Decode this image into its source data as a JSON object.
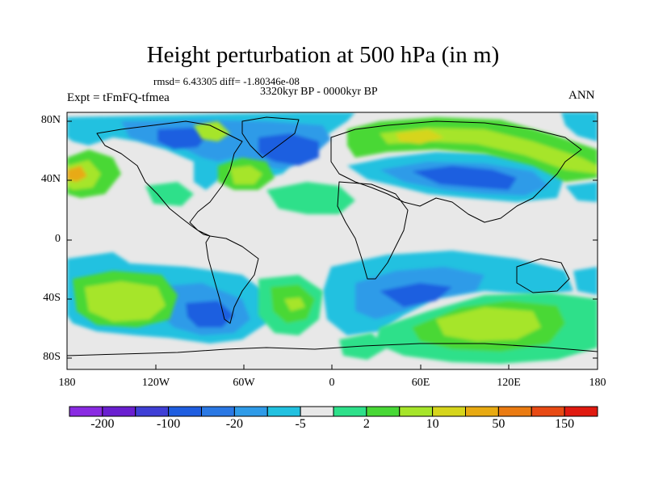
{
  "title": "Height perturbation at 500 hPa (in m)",
  "rmsd_line": "rmsd= 6.43305 diff= -1.80346e-08",
  "period": "3320kyr BP - 0000kyr BP",
  "experiment": "Expt = tFmFQ-tfmea",
  "season": "ANN",
  "lat_labels": [
    "80N",
    "40N",
    "0",
    "40S",
    "80S"
  ],
  "lon_labels": [
    "180",
    "120W",
    "60W",
    "0",
    "60E",
    "120E",
    "180"
  ],
  "colorbar": {
    "colors": [
      "#8a2be2",
      "#6a1fd0",
      "#3f3fd6",
      "#1f5ee0",
      "#2a78e4",
      "#2f9be8",
      "#22c1e0",
      "#e8e8e8",
      "#2ee08a",
      "#48d836",
      "#a6e52a",
      "#d6d51c",
      "#e8aa12",
      "#ea7b12",
      "#e84a14",
      "#e01a10"
    ],
    "labels": [
      "-200",
      "-100",
      "-20",
      "-5",
      "2",
      "10",
      "50",
      "150"
    ]
  },
  "colors": {
    "background": "#e8e8e8",
    "neg1": "#22c1e0",
    "neg2": "#2f9be8",
    "neg3": "#1f5ee0",
    "pos1": "#2ee08a",
    "pos2": "#48d836",
    "pos3": "#a6e52a",
    "pos4": "#d6d51c"
  }
}
